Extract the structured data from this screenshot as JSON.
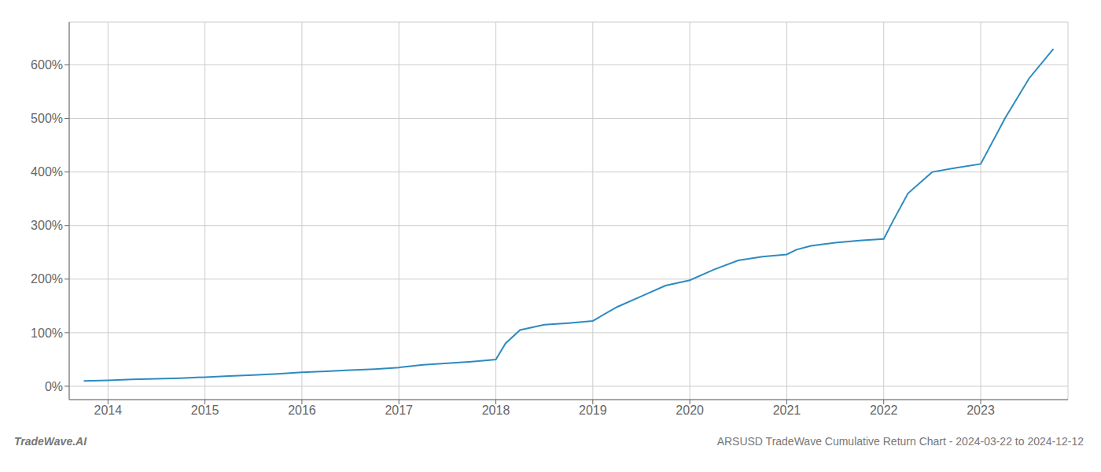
{
  "chart_data": {
    "type": "line",
    "title": "ARSUSD TradeWave Cumulative Return Chart - 2024-03-22 to 2024-12-12",
    "annotations": [
      "TradeWave.AI"
    ],
    "color": "#2e8bc0",
    "grid": true,
    "x": [
      2013.75,
      2014.0,
      2014.25,
      2014.5,
      2014.75,
      2015.0,
      2015.25,
      2015.5,
      2015.75,
      2016.0,
      2016.25,
      2016.5,
      2016.75,
      2017.0,
      2017.1,
      2017.25,
      2017.5,
      2017.75,
      2018.0,
      2018.1,
      2018.25,
      2018.5,
      2018.75,
      2019.0,
      2019.25,
      2019.5,
      2019.75,
      2020.0,
      2020.25,
      2020.5,
      2020.75,
      2021.0,
      2021.1,
      2021.25,
      2021.5,
      2021.75,
      2022.0,
      2022.1,
      2022.25,
      2022.5,
      2022.75,
      2023.0,
      2023.25,
      2023.5,
      2023.75
    ],
    "values": [
      10,
      11,
      13,
      14,
      15,
      17,
      19,
      21,
      23,
      26,
      28,
      30,
      32,
      35,
      37,
      40,
      43,
      46,
      50,
      80,
      105,
      115,
      118,
      122,
      148,
      168,
      188,
      198,
      218,
      235,
      242,
      246,
      255,
      262,
      268,
      272,
      275,
      310,
      360,
      400,
      408,
      415,
      500,
      575,
      630
    ],
    "xlim": [
      2013.6,
      2023.9
    ],
    "xticks": [
      2014,
      2015,
      2016,
      2017,
      2018,
      2019,
      2020,
      2021,
      2022,
      2023
    ],
    "ylim": [
      -25,
      680
    ],
    "yticks": [
      {
        "value": 0,
        "label": "0%"
      },
      {
        "value": 100,
        "label": "100%"
      },
      {
        "value": 200,
        "label": "200%"
      },
      {
        "value": 300,
        "label": "300%"
      },
      {
        "value": 400,
        "label": "400%"
      },
      {
        "value": 500,
        "label": "500%"
      },
      {
        "value": 600,
        "label": "600%"
      }
    ]
  }
}
